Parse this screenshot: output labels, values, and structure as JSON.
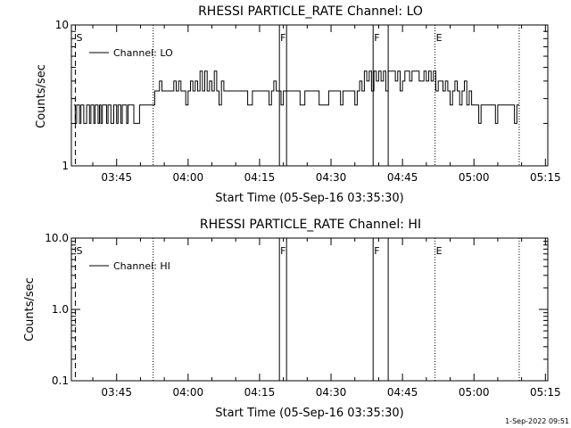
{
  "footer_timestamp": "1-Sep-2022 09:51",
  "colors": {
    "background": "#ffffff",
    "ink": "#000000"
  },
  "chart_data": [
    {
      "type": "line",
      "title": "RHESSI PARTICLE_RATE Channel: LO",
      "xlabel": "Start Time (05-Sep-16 03:35:30)",
      "ylabel": "Counts/sec",
      "yscale": "log",
      "ylim": [
        1,
        10
      ],
      "ytick_labels": [
        "1",
        "10"
      ],
      "xlim": [
        "03:35:30",
        "05:15:30"
      ],
      "xtick_labels": [
        "03:45",
        "04:00",
        "04:15",
        "04:30",
        "04:45",
        "05:00",
        "05:15"
      ],
      "legend": {
        "placement": "top-left",
        "entries": [
          "Channel: LO"
        ]
      },
      "grid": false,
      "event_markers": [
        {
          "label": "S",
          "time": "03:36:20",
          "style": "dashed"
        },
        {
          "label": "",
          "time": "03:52:40",
          "style": "dotted"
        },
        {
          "label": "F",
          "time": "04:19:10",
          "style": "solid"
        },
        {
          "label": "",
          "time": "04:20:40",
          "style": "solid"
        },
        {
          "label": "F",
          "time": "04:38:50",
          "style": "solid"
        },
        {
          "label": "",
          "time": "04:42:00",
          "style": "solid"
        },
        {
          "label": "E",
          "time": "04:51:50",
          "style": "dotted"
        },
        {
          "label": "",
          "time": "05:09:30",
          "style": "dotted"
        }
      ],
      "series": [
        {
          "x_minutes_since_start": [
            0.5,
            0.8,
            1.1,
            1.4,
            1.7,
            2.0,
            2.3,
            2.6,
            2.9,
            3.2,
            3.5,
            3.8,
            4.1,
            4.4,
            4.7,
            5.0,
            5.3,
            5.6,
            5.9,
            6.2,
            6.5,
            6.8,
            7.1,
            7.4,
            7.7,
            8.0,
            8.3,
            8.6,
            8.9,
            9.2,
            9.5,
            9.8,
            10.1,
            10.4,
            10.7,
            11.0,
            11.3,
            11.6,
            11.9,
            12.2,
            12.5,
            12.8,
            13.1,
            13.4,
            13.7,
            14.0,
            14.3,
            14.6,
            14.9,
            15.2,
            15.5,
            15.8,
            16.1,
            16.4,
            16.7,
            17.0,
            17.5,
            18.0,
            18.5,
            19.0,
            19.5,
            20.0,
            20.5,
            21.0,
            21.5,
            22.0,
            22.5,
            23.0,
            23.5,
            24.0,
            24.5,
            25.0,
            25.5,
            26.0,
            26.5,
            27.0,
            27.5,
            28.0,
            28.5,
            29.0,
            29.5,
            30.0,
            30.5,
            31.0,
            31.5,
            32.0,
            33.0,
            34.0,
            35.0,
            36.0,
            37.0,
            38.0,
            39.0,
            40.0,
            41.0,
            41.5,
            42.0,
            42.5,
            43.0,
            43.5,
            44.0,
            44.5,
            45.0,
            45.5,
            46.0,
            46.5,
            47.0,
            48.0,
            49.0,
            50.0,
            51.0,
            52.0,
            53.0,
            54.0,
            54.5,
            55.0,
            55.5,
            56.0,
            56.5,
            57.0,
            57.5,
            58.0,
            58.5,
            59.0,
            59.5,
            60.0,
            60.5,
            61.0,
            61.5,
            62.0,
            62.5,
            63.0,
            63.5,
            64.0,
            64.5,
            65.0,
            65.5,
            66.0,
            66.5,
            67.0,
            67.5,
            68.0,
            68.5,
            69.0,
            69.5,
            70.0,
            70.5,
            71.0,
            71.5,
            72.0,
            72.5,
            73.0,
            73.5,
            74.0,
            74.5,
            75.0,
            75.5,
            76.0,
            76.5,
            77.0,
            77.5,
            78.0,
            78.5,
            79.0,
            79.5,
            80.0,
            80.5,
            81.0,
            81.5,
            82.0,
            82.5,
            83.0,
            83.5,
            84.0,
            84.5,
            85.0,
            85.5,
            86.0,
            86.5,
            87.0,
            87.5,
            88.0,
            88.5,
            89.0,
            89.5,
            90.0,
            90.5,
            91.0,
            91.5,
            92.0,
            92.5,
            93.0,
            93.5,
            94.0
          ],
          "name": "Channel: LO",
          "values": [
            2.7,
            2.0,
            2.7,
            2.7,
            2.0,
            2.7,
            2.7,
            2.0,
            2.0,
            2.7,
            2.7,
            2.0,
            2.7,
            2.7,
            2.0,
            2.7,
            2.7,
            2.0,
            2.7,
            2.0,
            2.7,
            2.7,
            2.7,
            2.0,
            2.7,
            2.7,
            2.0,
            2.0,
            2.7,
            2.7,
            2.0,
            2.7,
            2.7,
            2.0,
            2.7,
            2.7,
            2.7,
            2.0,
            2.7,
            2.7,
            2.7,
            2.7,
            2.0,
            2.0,
            2.0,
            2.0,
            2.7,
            2.7,
            2.7,
            2.7,
            2.7,
            2.7,
            2.7,
            2.7,
            2.7,
            2.7,
            3.4,
            3.4,
            4.0,
            3.4,
            3.4,
            3.4,
            3.4,
            3.4,
            4.0,
            3.4,
            4.0,
            3.4,
            3.4,
            2.7,
            3.4,
            4.0,
            3.4,
            4.0,
            3.4,
            4.7,
            3.4,
            4.7,
            3.4,
            4.0,
            3.4,
            4.7,
            3.4,
            2.7,
            4.0,
            3.4,
            3.4,
            3.4,
            3.4,
            3.4,
            2.7,
            3.4,
            3.4,
            3.4,
            3.4,
            2.7,
            3.4,
            4.0,
            3.4,
            3.4,
            2.7,
            3.4,
            3.4,
            3.4,
            3.4,
            3.4,
            3.4,
            2.7,
            3.4,
            3.4,
            3.4,
            2.7,
            2.7,
            3.4,
            3.4,
            3.4,
            3.4,
            3.4,
            2.7,
            3.4,
            3.4,
            3.4,
            3.4,
            3.4,
            2.7,
            3.4,
            4.0,
            3.4,
            4.7,
            4.0,
            4.7,
            3.4,
            4.7,
            4.0,
            4.7,
            4.0,
            4.7,
            3.4,
            4.7,
            4.7,
            4.7,
            4.0,
            4.7,
            3.4,
            4.0,
            4.7,
            4.7,
            4.0,
            4.7,
            4.7,
            4.7,
            4.0,
            4.0,
            4.7,
            4.0,
            4.7,
            4.0,
            4.7,
            3.4,
            4.0,
            4.0,
            3.4,
            4.0,
            3.4,
            2.7,
            3.4,
            4.0,
            3.4,
            2.7,
            3.4,
            4.0,
            2.7,
            3.4,
            2.7,
            2.7,
            2.7,
            2.0,
            2.7,
            2.7,
            2.7,
            2.7,
            2.7,
            2.7,
            2.0,
            2.7,
            2.7,
            2.7,
            2.7,
            2.7,
            2.7,
            2.7,
            2.0,
            2.7,
            2.7,
            2.7
          ]
        }
      ]
    },
    {
      "type": "line",
      "title": "RHESSI PARTICLE_RATE Channel: HI",
      "xlabel": "Start Time (05-Sep-16 03:35:30)",
      "ylabel": "Counts/sec",
      "yscale": "log",
      "ylim": [
        0.1,
        10.0
      ],
      "ytick_labels": [
        "0.1",
        "1.0",
        "10.0"
      ],
      "xlim": [
        "03:35:30",
        "05:15:30"
      ],
      "xtick_labels": [
        "03:45",
        "04:00",
        "04:15",
        "04:30",
        "04:45",
        "05:00",
        "05:15"
      ],
      "legend": {
        "placement": "top-left",
        "entries": [
          "Channel: HI"
        ]
      },
      "grid": false,
      "event_markers": [
        {
          "label": "S",
          "time": "03:36:20",
          "style": "dashed"
        },
        {
          "label": "",
          "time": "03:52:40",
          "style": "dotted"
        },
        {
          "label": "F",
          "time": "04:19:10",
          "style": "solid"
        },
        {
          "label": "",
          "time": "04:20:40",
          "style": "solid"
        },
        {
          "label": "F",
          "time": "04:38:50",
          "style": "solid"
        },
        {
          "label": "",
          "time": "04:42:00",
          "style": "solid"
        },
        {
          "label": "E",
          "time": "04:51:50",
          "style": "dotted"
        },
        {
          "label": "",
          "time": "05:09:30",
          "style": "dotted"
        }
      ],
      "series": [
        {
          "name": "Channel: HI",
          "values": []
        }
      ]
    }
  ]
}
